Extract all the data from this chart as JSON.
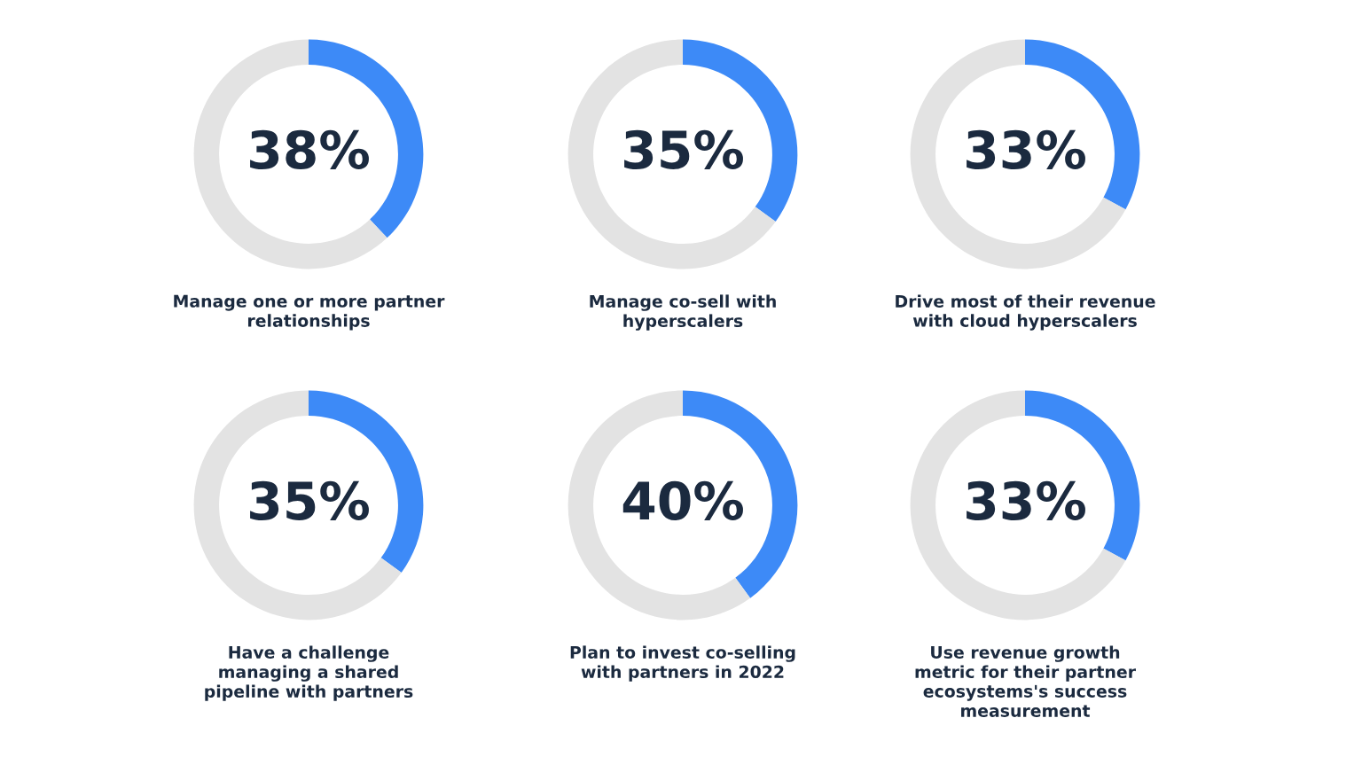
{
  "chart_data": [
    {
      "type": "donut",
      "title": "Manage one or more partner\nrelationships",
      "categories": [
        null,
        null
      ],
      "values": [
        38,
        62
      ],
      "colors": [
        "#3d8af7",
        "#e3e3e3"
      ],
      "value_labels": [
        "38%",
        null
      ]
    },
    {
      "type": "donut",
      "title": "Manage co-sell with\nhyperscalers",
      "categories": [
        null,
        null
      ],
      "values": [
        35,
        65
      ],
      "colors": [
        "#3d8af7",
        "#e3e3e3"
      ],
      "value_labels": [
        "35%",
        null
      ]
    },
    {
      "type": "donut",
      "title": "Drive most of their revenue\nwith cloud hyperscalers",
      "categories": [
        null,
        null
      ],
      "values": [
        33,
        67
      ],
      "colors": [
        "#3d8af7",
        "#e3e3e3"
      ],
      "value_labels": [
        "33%",
        null
      ]
    },
    {
      "type": "donut",
      "title": "Have a challenge\nmanaging a shared\npipeline with partners",
      "categories": [
        null,
        null
      ],
      "values": [
        35,
        65
      ],
      "colors": [
        "#3d8af7",
        "#e3e3e3"
      ],
      "value_labels": [
        "35%",
        null
      ]
    },
    {
      "type": "donut",
      "title": "Plan to invest co-selling\nwith partners in 2022",
      "categories": [
        null,
        null
      ],
      "values": [
        40,
        60
      ],
      "colors": [
        "#3d8af7",
        "#e3e3e3"
      ],
      "value_labels": [
        "40%",
        null
      ]
    },
    {
      "type": "donut",
      "title": "Use revenue growth\nmetric for their partner\necosystems's success\nmeasurement",
      "categories": [
        null,
        null
      ],
      "values": [
        33,
        67
      ],
      "colors": [
        "#3d8af7",
        "#e3e3e3"
      ],
      "value_labels": [
        "33%",
        null
      ]
    }
  ]
}
